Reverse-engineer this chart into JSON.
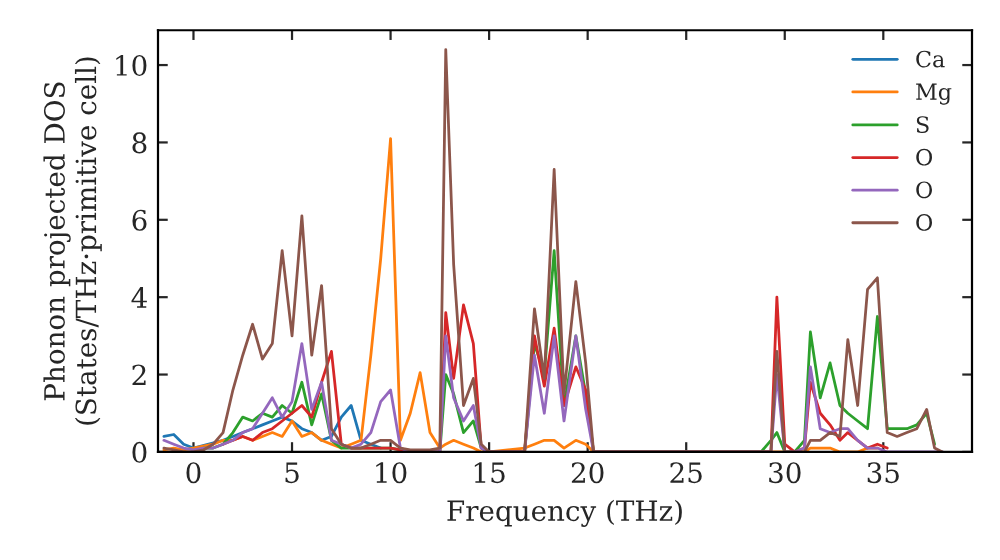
{
  "chart_data": {
    "type": "line",
    "xlabel": "Frequency (THz)",
    "ylabel": "Phonon projected DOS\n(States/THz·primitive cell)",
    "x": [
      -1.5,
      -1,
      -0.5,
      0,
      0.5,
      1,
      1.5,
      2,
      2.5,
      3,
      3.5,
      4,
      4.5,
      5,
      5.5,
      6,
      6.5,
      7,
      7.5,
      8,
      8.5,
      9,
      9.5,
      10,
      10.5,
      11,
      11.5,
      12,
      12.5,
      12.8,
      13.2,
      13.7,
      14.2,
      14.6,
      15,
      16.8,
      17.3,
      17.8,
      18.3,
      18.8,
      19.4,
      19.9,
      20.3,
      28.8,
      29.3,
      29.6,
      30,
      30.5,
      31,
      31.3,
      31.8,
      32.3,
      32.8,
      33.2,
      33.7,
      34.2,
      34.7,
      35.2,
      35.7,
      36.2,
      36.7,
      37.2,
      37.6,
      38
    ],
    "series": [
      {
        "name": "Ca",
        "color": "#1f77b4",
        "values": [
          0.4,
          0.45,
          0.2,
          0.1,
          null,
          null,
          0.3,
          0.4,
          0.5,
          0.6,
          0.7,
          0.8,
          0.9,
          0.8,
          0.6,
          0.5,
          0.3,
          0.4,
          0.9,
          1.2,
          0.3,
          0.2,
          0.1,
          null,
          null,
          null,
          null,
          null,
          null,
          null,
          null,
          null,
          null,
          null,
          null,
          null,
          null,
          null,
          null,
          null,
          null,
          null,
          null,
          null,
          null,
          null,
          null,
          null,
          null,
          null,
          null,
          null,
          null,
          null,
          null,
          null,
          null,
          null,
          null,
          null,
          null,
          null,
          null,
          null
        ]
      },
      {
        "name": "Mg",
        "color": "#ff7f0e",
        "values": [
          0.05,
          0.1,
          0.05,
          0.1,
          0.15,
          0.2,
          0.3,
          0.3,
          0.4,
          0.3,
          0.4,
          0.5,
          0.4,
          0.8,
          0.4,
          0.5,
          0.3,
          0.2,
          0.1,
          0.2,
          0.3,
          2.5,
          5.0,
          8.1,
          0.3,
          1.0,
          2.05,
          0.5,
          0.1,
          0.2,
          0.3,
          0.2,
          0.1,
          0,
          0,
          0.1,
          0.2,
          0.3,
          0.3,
          0.1,
          0.3,
          0.2,
          0,
          0,
          0,
          null,
          0,
          0,
          0,
          0.1,
          0.1,
          0.1,
          0,
          null,
          0,
          0.1,
          0.1,
          null,
          null,
          null,
          null,
          null,
          null,
          null
        ]
      },
      {
        "name": "S",
        "color": "#2ca02c",
        "values": [
          null,
          null,
          null,
          null,
          0.1,
          0.1,
          0.2,
          0.5,
          0.9,
          0.8,
          1.0,
          0.9,
          1.2,
          1.0,
          1.8,
          0.7,
          1.5,
          0.3,
          0.1,
          0.1,
          0.1,
          0.1,
          0.1,
          0.1,
          0.05,
          0,
          0,
          0,
          0,
          2.0,
          1.5,
          0.5,
          0.8,
          0.1,
          0,
          0,
          2.8,
          2.0,
          5.2,
          1.2,
          3.0,
          1.5,
          0,
          0,
          0.3,
          0.5,
          0,
          0,
          0.3,
          3.1,
          1.4,
          2.3,
          1.2,
          1.0,
          0.8,
          0.6,
          3.5,
          0.6,
          0.6,
          0.6,
          0.7,
          1.0,
          0.2,
          null
        ]
      },
      {
        "name": "O",
        "color": "#d62728",
        "values": [
          null,
          null,
          null,
          null,
          null,
          null,
          0.2,
          0.3,
          0.4,
          0.3,
          0.5,
          0.6,
          0.8,
          1.0,
          1.2,
          0.9,
          1.8,
          2.6,
          0.2,
          0.1,
          0.1,
          0.1,
          0.1,
          0.1,
          0.05,
          0,
          0,
          0,
          0,
          3.6,
          1.9,
          3.8,
          2.8,
          0.1,
          0,
          0,
          3.0,
          1.7,
          3.2,
          1.2,
          2.2,
          1.6,
          0,
          0,
          0,
          4.0,
          0.2,
          0,
          0.1,
          1.8,
          1.0,
          0.7,
          0.3,
          0.5,
          0.3,
          0.1,
          0.2,
          0.1,
          null,
          null,
          null,
          null,
          null,
          null
        ]
      },
      {
        "name": "O",
        "color": "#9467bd",
        "values": [
          0.3,
          0.2,
          0.1,
          0.05,
          0.1,
          0.1,
          0.2,
          0.3,
          0.5,
          0.6,
          1.0,
          1.4,
          0.9,
          1.3,
          2.8,
          1.1,
          1.8,
          0.3,
          0.2,
          0.1,
          0.2,
          0.5,
          1.3,
          1.6,
          0.1,
          0,
          0,
          0,
          0,
          3.0,
          1.4,
          0.8,
          1.2,
          0.1,
          0,
          0,
          2.5,
          1.0,
          3.0,
          0.8,
          3.0,
          1.1,
          0,
          0,
          0,
          2.0,
          0,
          0,
          0.1,
          2.2,
          0.6,
          0.5,
          0.6,
          0.6,
          0.3,
          0.1,
          0.1,
          0,
          0,
          0,
          0,
          0,
          0,
          0
        ]
      },
      {
        "name": "O",
        "color": "#8c564b",
        "values": [
          0.1,
          0.05,
          0,
          0,
          0.05,
          0.2,
          0.5,
          1.6,
          2.5,
          3.3,
          2.4,
          2.8,
          5.2,
          3.0,
          6.1,
          2.5,
          4.3,
          0.6,
          0.2,
          0.1,
          0.1,
          0.2,
          0.3,
          0.3,
          0.1,
          0.05,
          0.05,
          0.05,
          0.1,
          10.4,
          4.85,
          1.2,
          1.9,
          0.2,
          0,
          0,
          3.7,
          1.9,
          7.3,
          1.5,
          4.4,
          2.3,
          0,
          0,
          0,
          2.6,
          0,
          0,
          0,
          0.3,
          0.3,
          0.5,
          0.4,
          2.9,
          1.2,
          4.2,
          4.5,
          0.5,
          0.4,
          0.5,
          0.6,
          1.1,
          0.1,
          0
        ]
      }
    ],
    "xlim": [
      -1.8,
      39.5
    ],
    "ylim": [
      0,
      10.9
    ],
    "xticks": [
      0,
      5,
      10,
      15,
      20,
      25,
      30,
      35
    ],
    "yticks": [
      0,
      2,
      4,
      6,
      8,
      10
    ],
    "grid": false,
    "legend": "top right",
    "marker": "none",
    "line_style": "solid"
  }
}
